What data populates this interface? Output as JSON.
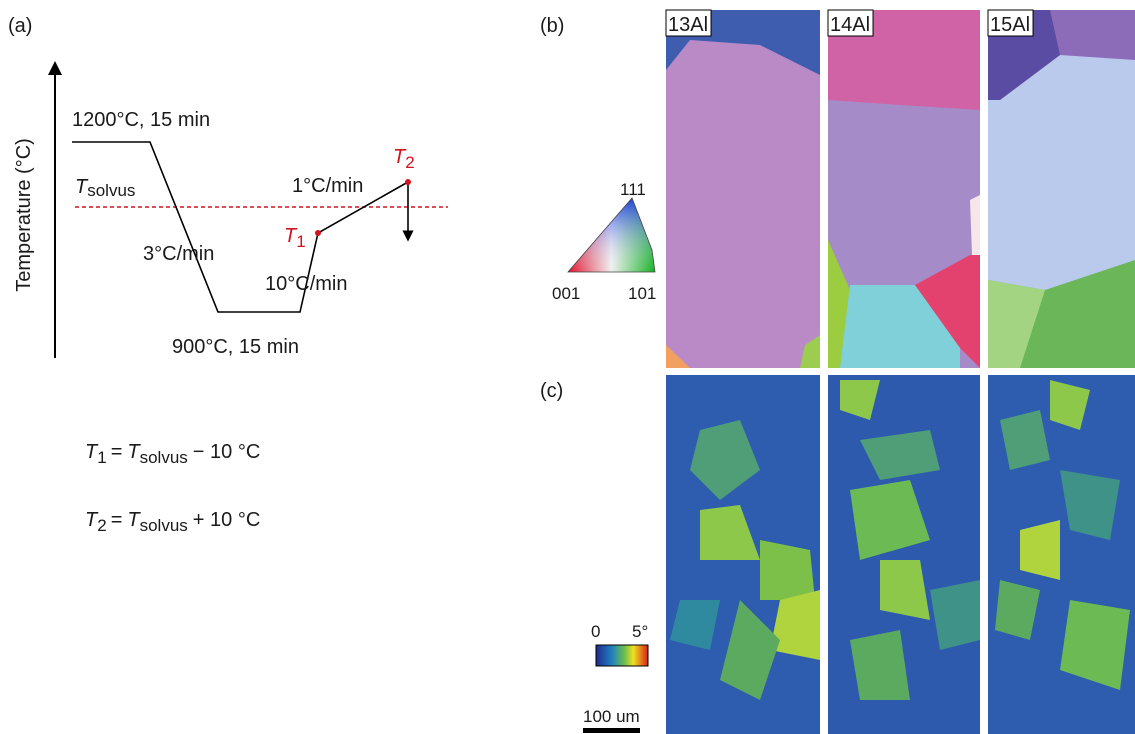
{
  "panel_a": {
    "label": "(a)",
    "y_axis": "Temperature (°C)",
    "annotations": {
      "hold_high": "1200°C, 15 min",
      "solvus_T": "T",
      "solvus_sub": "solvus",
      "rate_heat": "1°C/min",
      "t2_T": "T",
      "t2_sub": "2",
      "t1_T": "T",
      "t1_sub": "1",
      "rate_cool": "3°C/min",
      "rate_fast": "10°C/min",
      "hold_low": "900°C, 15 min"
    },
    "equations": [
      [
        "T",
        "1",
        "=",
        "T",
        "solvus",
        "− 10 °C"
      ],
      [
        "T",
        "2",
        "=",
        "T",
        "solvus",
        "+ 10 °C"
      ]
    ]
  },
  "panel_b": {
    "label": "(b)",
    "samples": [
      "13Al",
      "14Al",
      "15Al"
    ],
    "ipf_key": [
      "111",
      "001",
      "101"
    ]
  },
  "panel_c": {
    "label": "(c)",
    "colorbar": [
      "0",
      "5°"
    ],
    "scale_bar": "100 um"
  }
}
